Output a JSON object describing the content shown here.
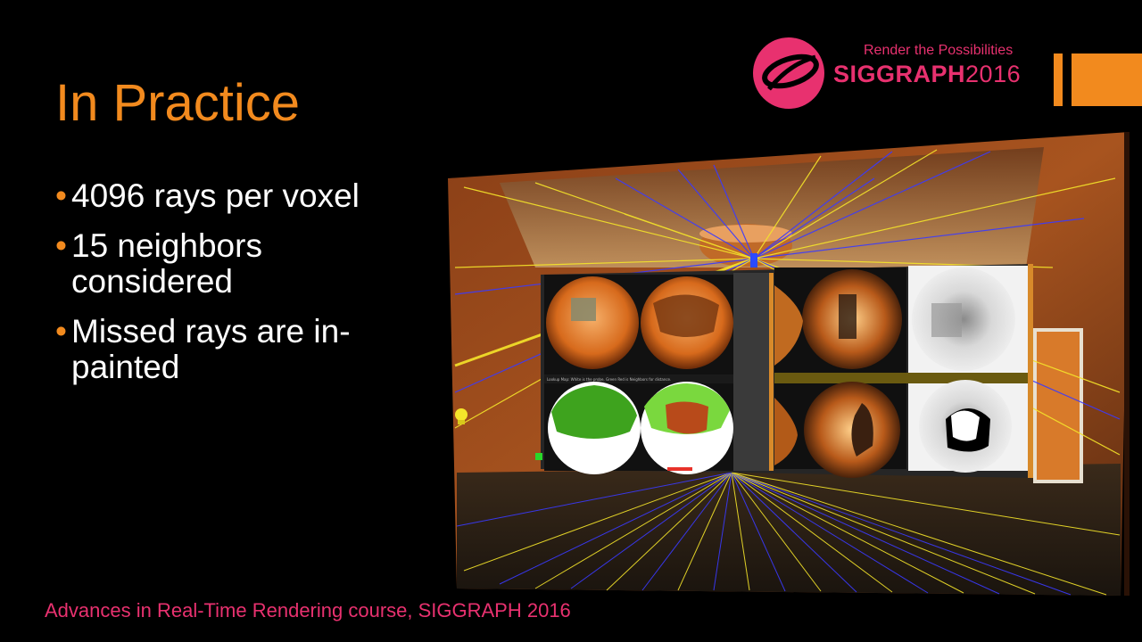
{
  "slide": {
    "title": "In Practice",
    "bullets": [
      {
        "text": "4096 rays per voxel"
      },
      {
        "text": "15 neighbors considered"
      },
      {
        "text": "Missed rays are in-painted"
      }
    ],
    "bullet_glyph": "•",
    "footer": "Advances in Real-Time Rendering course, SIGGRAPH 2016"
  },
  "logo": {
    "tagline": "Render the Possibilities",
    "brand": "SIGGRAPH",
    "year": "2016",
    "icon": "siggraph-swirl-icon"
  },
  "screenshot": {
    "caption": "Lookup Map: White is the probe, Green Red is Neighbors for distance.",
    "icon": "lightbulb-icon"
  },
  "colors": {
    "accent_orange": "#f28a1e",
    "brand_pink": "#e8316f",
    "background": "#000000",
    "text": "#ffffff"
  }
}
